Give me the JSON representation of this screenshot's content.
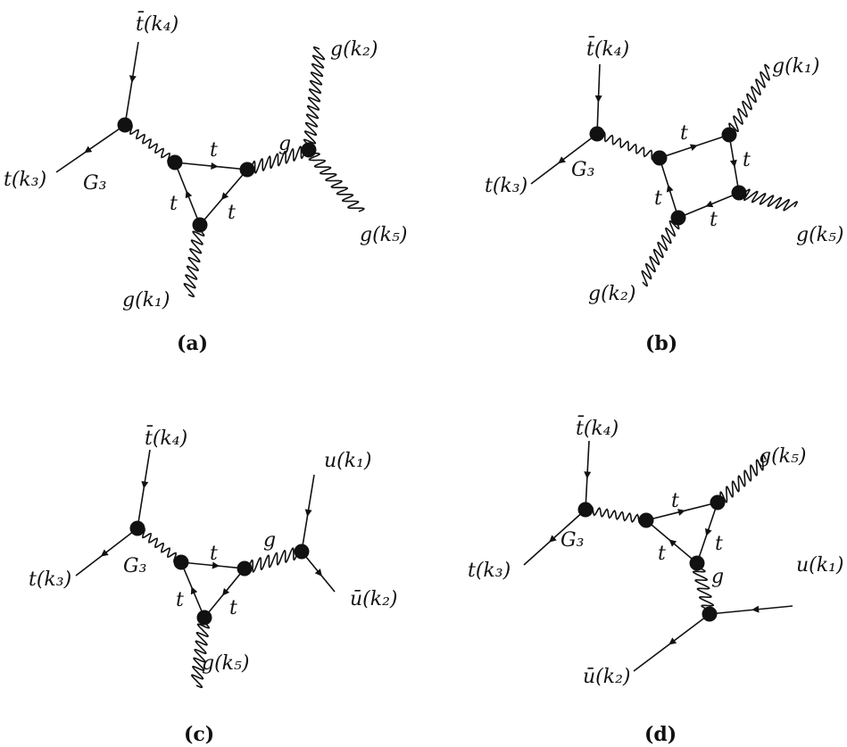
{
  "panels": {
    "a": {
      "caption": "(a)",
      "labels": {
        "tbar_k4": "t̄(k₄)",
        "t_k3": "t(k₃)",
        "G3": "G₃",
        "t_top": "t",
        "g_mid": "g",
        "g_k2": "g(k₂)",
        "g_k5": "g(k₅)",
        "t_left": "t",
        "t_right": "t",
        "g_k1": "g(k₁)"
      }
    },
    "b": {
      "caption": "(b)",
      "labels": {
        "tbar_k4": "t̄(k₄)",
        "t_k3": "t(k₃)",
        "G3": "G₃",
        "t_top": "t",
        "t_right": "t",
        "t_left": "t",
        "t_bottom": "t",
        "g_k1": "g(k₁)",
        "g_k5": "g(k₅)",
        "g_k2": "g(k₂)"
      }
    },
    "c": {
      "caption": "(c)",
      "labels": {
        "tbar_k4": "t̄(k₄)",
        "t_k3": "t(k₃)",
        "G3": "G₃",
        "t_top": "t",
        "g_mid": "g",
        "u_k1": "u(k₁)",
        "ubar_k2": "ū(k₂)",
        "t_left": "t",
        "t_right": "t",
        "g_k5": "g(k₅)"
      }
    },
    "d": {
      "caption": "(d)",
      "labels": {
        "tbar_k4": "t̄(k₄)",
        "t_k3": "t(k₃)",
        "G3": "G₃",
        "t_top": "t",
        "g_k5": "g(k₅)",
        "t_right": "t",
        "t_left": "t",
        "g_mid": "g",
        "u_k1": "u(k₁)",
        "ubar_k2": "ū(k₂)"
      }
    }
  },
  "colors": {
    "ink": "#111111",
    "background": "#ffffff"
  }
}
